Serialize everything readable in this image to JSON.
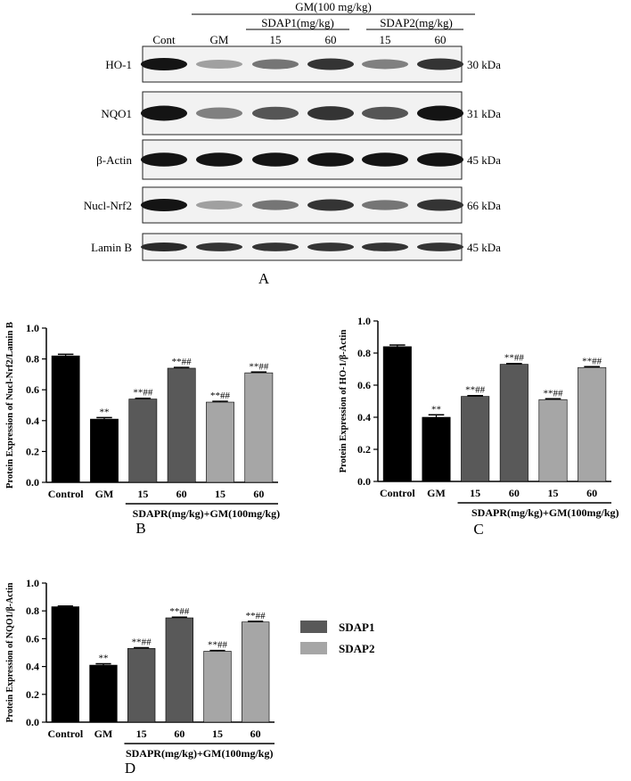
{
  "blot": {
    "header": "GM(100 mg/kg)",
    "group1": "SDAP1(mg/kg)",
    "group2": "SDAP2(mg/kg)",
    "lanes": [
      "Cont",
      "GM",
      "15",
      "60",
      "15",
      "60"
    ],
    "rows": [
      {
        "label": "HO-1",
        "size": "30 kDa",
        "intensity": [
          1.0,
          0.35,
          0.55,
          0.85,
          0.5,
          0.85
        ]
      },
      {
        "label": "NQO1",
        "size": "31 kDa",
        "intensity": [
          1.0,
          0.5,
          0.7,
          0.85,
          0.7,
          1.0
        ]
      },
      {
        "label": "β-Actin",
        "size": "45 kDa",
        "intensity": [
          1.0,
          1.0,
          1.0,
          1.0,
          1.0,
          1.0
        ]
      },
      {
        "label": "Nucl-Nrf2",
        "size": "66 kDa",
        "intensity": [
          1.0,
          0.35,
          0.55,
          0.85,
          0.55,
          0.85
        ]
      },
      {
        "label": "Lamin B",
        "size": "45 kDa",
        "intensity": [
          0.9,
          0.85,
          0.85,
          0.85,
          0.85,
          0.85
        ]
      }
    ],
    "panel_label": "A"
  },
  "legend": [
    {
      "name": "SDAP1",
      "color": "#595959"
    },
    {
      "name": "SDAP2",
      "color": "#a6a6a6"
    }
  ],
  "chart_data": [
    {
      "type": "bar",
      "panel_label": "B",
      "ylabel": "Protein Expression of Nucl-Nrf2/Lamin B",
      "xlabel": "SDAPR(mg/kg)+GM(100mg/kg)",
      "ylim": [
        0,
        1.0
      ],
      "yticks": [
        "0.0",
        "0.2",
        "0.4",
        "0.6",
        "0.8",
        "1.0"
      ],
      "categories": [
        "Control",
        "GM",
        "15",
        "60",
        "15",
        "60"
      ],
      "values": [
        0.82,
        0.41,
        0.54,
        0.74,
        0.52,
        0.71
      ],
      "errors": [
        0.01,
        0.01,
        0.005,
        0.005,
        0.005,
        0.005
      ],
      "colors": [
        "#000000",
        "#000000",
        "#595959",
        "#595959",
        "#a6a6a6",
        "#a6a6a6"
      ],
      "annotations": [
        "",
        "**",
        "**##",
        "**##",
        "**##",
        "**##"
      ]
    },
    {
      "type": "bar",
      "panel_label": "C",
      "ylabel": "Protein Expression of HO-1/β-Actin",
      "xlabel": "SDAPR(mg/kg)+GM(100mg/kg)",
      "ylim": [
        0,
        1.0
      ],
      "yticks": [
        "0.0",
        "0.2",
        "0.4",
        "0.6",
        "0.8",
        "1.0"
      ],
      "categories": [
        "Control",
        "GM",
        "15",
        "60",
        "15",
        "60"
      ],
      "values": [
        0.84,
        0.4,
        0.53,
        0.73,
        0.51,
        0.71
      ],
      "errors": [
        0.01,
        0.015,
        0.005,
        0.005,
        0.005,
        0.005
      ],
      "colors": [
        "#000000",
        "#000000",
        "#595959",
        "#595959",
        "#a6a6a6",
        "#a6a6a6"
      ],
      "annotations": [
        "",
        "**",
        "**##",
        "**##",
        "**##",
        "**##"
      ]
    },
    {
      "type": "bar",
      "panel_label": "D",
      "ylabel": "Protein Expression of NQO1/β-Actin",
      "xlabel": "SDAPR(mg/kg)+GM(100mg/kg)",
      "ylim": [
        0,
        1.0
      ],
      "yticks": [
        "0.0",
        "0.2",
        "0.4",
        "0.6",
        "0.8",
        "1.0"
      ],
      "categories": [
        "Control",
        "GM",
        "15",
        "60",
        "15",
        "60"
      ],
      "values": [
        0.83,
        0.41,
        0.53,
        0.75,
        0.51,
        0.72
      ],
      "errors": [
        0.005,
        0.01,
        0.005,
        0.005,
        0.005,
        0.005
      ],
      "colors": [
        "#000000",
        "#000000",
        "#595959",
        "#595959",
        "#a6a6a6",
        "#a6a6a6"
      ],
      "annotations": [
        "",
        "**",
        "**##",
        "**##",
        "**##",
        "**##"
      ]
    }
  ]
}
